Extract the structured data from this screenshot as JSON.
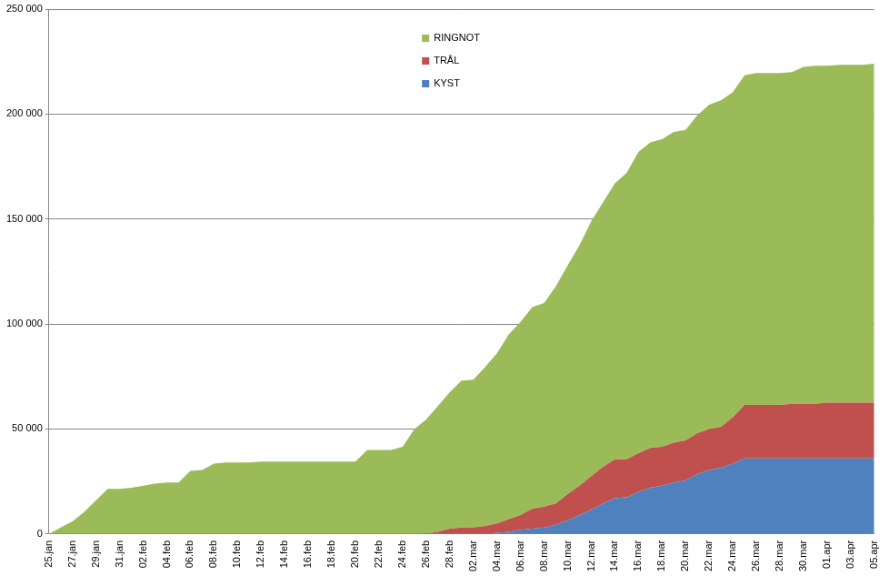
{
  "chart_data": {
    "type": "area",
    "stacked": true,
    "grid": true,
    "legend": "top",
    "categories": [
      "25.jan",
      null,
      "27.jan",
      null,
      "29.jan",
      null,
      "31.jan",
      null,
      "02.feb",
      null,
      "04.feb",
      null,
      "06.feb",
      null,
      "08.feb",
      null,
      "10.feb",
      null,
      "12.feb",
      null,
      "14.feb",
      null,
      "16.feb",
      null,
      "18.feb",
      null,
      "20.feb",
      null,
      "22.feb",
      null,
      "24.feb",
      null,
      "26.feb",
      null,
      "28.feb",
      null,
      "02.mar",
      null,
      "04.mar",
      null,
      "06.mar",
      null,
      "08.mar",
      null,
      "10.mar",
      null,
      "12.mar",
      null,
      "14.mar",
      null,
      "16.mar",
      null,
      "18.mar",
      null,
      "20.mar",
      null,
      "22.mar",
      null,
      "24.mar",
      null,
      "26.mar",
      null,
      "28.mar",
      null,
      "30.mar",
      null,
      "01.apr",
      null,
      "03.apr",
      null,
      "05.apr"
    ],
    "series": [
      {
        "name": "RINGNOT",
        "color": "#9bbb59",
        "values": [
          0,
          3000,
          6000,
          10500,
          16000,
          21500,
          21500,
          22000,
          23000,
          24000,
          24500,
          24500,
          30000,
          30500,
          33500,
          34000,
          34000,
          34000,
          34500,
          34500,
          34500,
          34500,
          34500,
          34500,
          34500,
          34500,
          34500,
          40000,
          40000,
          40000,
          41500,
          50000,
          54300,
          60000,
          65000,
          70000,
          70300,
          75700,
          81000,
          88000,
          92000,
          96000,
          97000,
          103500,
          109000,
          114500,
          121500,
          126000,
          131500,
          136500,
          143500,
          145500,
          146500,
          148000,
          148000,
          151500,
          154500,
          155500,
          155000,
          157000,
          158000,
          158000,
          158000,
          158000,
          160500,
          161000,
          160500,
          161000,
          161000,
          161000,
          161500
        ]
      },
      {
        "name": "TRÅL",
        "color": "#c0504d",
        "values": [
          0,
          0,
          0,
          0,
          0,
          0,
          0,
          0,
          0,
          0,
          0,
          0,
          0,
          0,
          0,
          0,
          0,
          0,
          0,
          0,
          0,
          0,
          0,
          0,
          0,
          0,
          0,
          0,
          0,
          0,
          0,
          0,
          200,
          1000,
          2500,
          3000,
          3200,
          3800,
          4500,
          6000,
          7000,
          9500,
          10000,
          10000,
          12500,
          14000,
          16000,
          17500,
          18500,
          18000,
          18500,
          19000,
          18500,
          19000,
          19000,
          19500,
          19500,
          19500,
          22000,
          25500,
          25500,
          25500,
          25500,
          26000,
          26000,
          26000,
          26500,
          26500,
          26500,
          26500,
          26500
        ]
      },
      {
        "name": "KYST",
        "color": "#4f81bd",
        "values": [
          0,
          0,
          0,
          0,
          0,
          0,
          0,
          0,
          0,
          0,
          0,
          0,
          0,
          0,
          0,
          0,
          0,
          0,
          0,
          0,
          0,
          0,
          0,
          0,
          0,
          0,
          0,
          0,
          0,
          0,
          0,
          0,
          0,
          0,
          0,
          0,
          0,
          0,
          500,
          1000,
          2000,
          2500,
          3000,
          4500,
          6500,
          9000,
          11500,
          14500,
          17000,
          17500,
          20000,
          22000,
          23000,
          24500,
          25500,
          28500,
          30500,
          31500,
          33500,
          36000,
          36000,
          36000,
          36000,
          36000,
          36000,
          36000,
          36000,
          36000,
          36000,
          36000,
          36000
        ]
      }
    ],
    "ylim": [
      0,
      250000
    ],
    "yticks": [
      0,
      {
        "value": 50000,
        "label": "50 000"
      },
      {
        "value": 100000,
        "label": "100 000"
      },
      {
        "value": 150000,
        "label": "150 000"
      },
      {
        "value": 200000,
        "label": "200 000"
      },
      {
        "value": 250000,
        "label": "250 000"
      }
    ]
  }
}
